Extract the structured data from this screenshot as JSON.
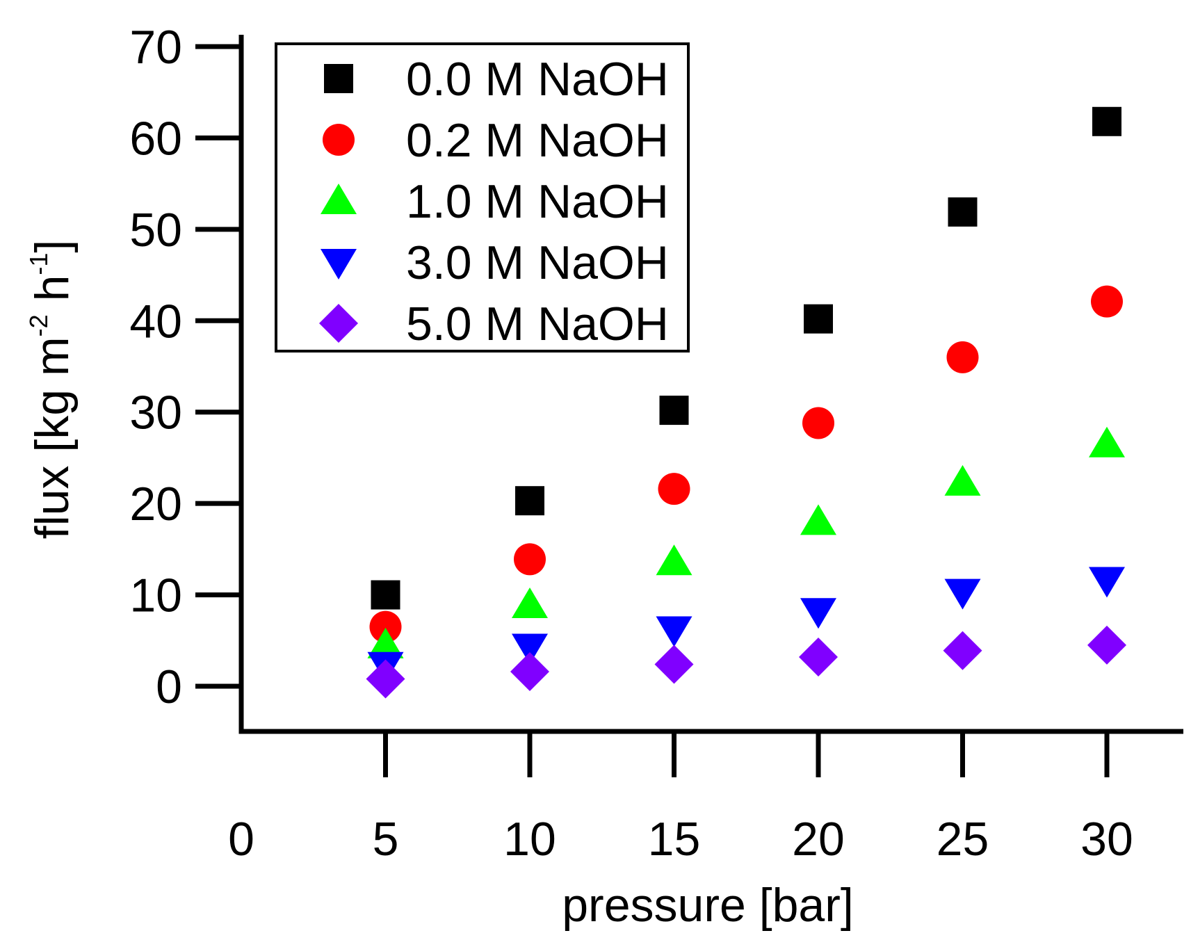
{
  "chart_data": {
    "type": "scatter",
    "title": "",
    "xlabel": "pressure [bar]",
    "ylabel": {
      "main": "flux [kg m",
      "sup1": "-2",
      "mid": " h",
      "sup2": "-1",
      "end": "]"
    },
    "xlim": [
      0,
      32.5
    ],
    "ylim": [
      -5,
      70
    ],
    "xticks": [
      0,
      5,
      10,
      15,
      20,
      25,
      30
    ],
    "yticks": [
      0,
      10,
      20,
      30,
      40,
      50,
      60,
      70
    ],
    "x": [
      5,
      10,
      15,
      20,
      25,
      30
    ],
    "legend_position": "top-left",
    "series": [
      {
        "name": "0.0 M NaOH",
        "marker": "square",
        "color": "#000000",
        "values": [
          10.0,
          20.3,
          30.2,
          40.2,
          51.9,
          61.8
        ]
      },
      {
        "name": "0.2 M NaOH",
        "marker": "circle",
        "color": "#ff0000",
        "values": [
          6.5,
          13.9,
          21.6,
          28.8,
          36.0,
          42.1
        ]
      },
      {
        "name": "1.0 M NaOH",
        "marker": "triangle-up",
        "color": "#00ff00",
        "values": [
          4.5,
          8.9,
          13.6,
          18.0,
          22.3,
          26.5
        ]
      },
      {
        "name": "3.0 M NaOH",
        "marker": "triangle-down",
        "color": "#0000ff",
        "values": [
          2.3,
          4.3,
          6.2,
          8.2,
          10.3,
          11.6
        ]
      },
      {
        "name": "5.0 M NaOH",
        "marker": "diamond",
        "color": "#8000ff",
        "values": [
          0.8,
          1.6,
          2.4,
          3.2,
          3.9,
          4.5
        ]
      }
    ]
  }
}
